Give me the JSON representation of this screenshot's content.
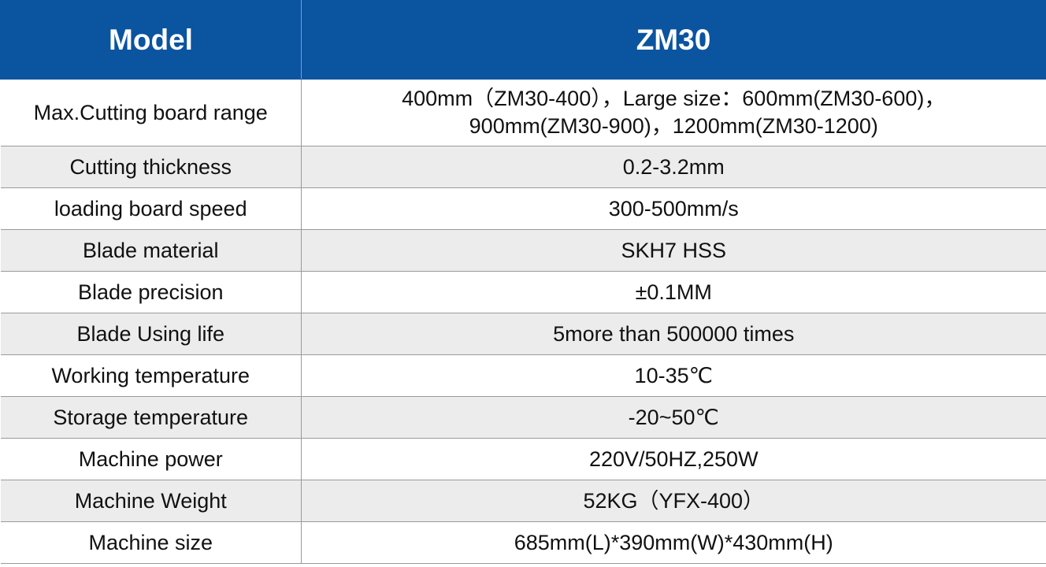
{
  "table": {
    "header": [
      "Model",
      "ZM30"
    ],
    "rows": [
      [
        "Max.Cutting board range",
        [
          "400mm（ZM30-400），Large size：600mm(ZM30-600)，",
          "900mm(ZM30-900)，1200mm(ZM30-1200)"
        ]
      ],
      [
        "Cutting thickness",
        "0.2-3.2mm"
      ],
      [
        "loading board speed",
        "300-500mm/s"
      ],
      [
        "Blade material",
        "SKH7 HSS"
      ],
      [
        "Blade precision",
        "±0.1MM"
      ],
      [
        "Blade Using life",
        "5more than 500000 times"
      ],
      [
        "Working temperature",
        "10-35℃"
      ],
      [
        "Storage temperature",
        "-20~50℃"
      ],
      [
        "Machine power",
        "220V/50HZ,250W"
      ],
      [
        "Machine Weight",
        "52KG（YFX-400）"
      ],
      [
        "Machine size",
        "685mm(L)*390mm(W)*430mm(H)"
      ]
    ]
  }
}
